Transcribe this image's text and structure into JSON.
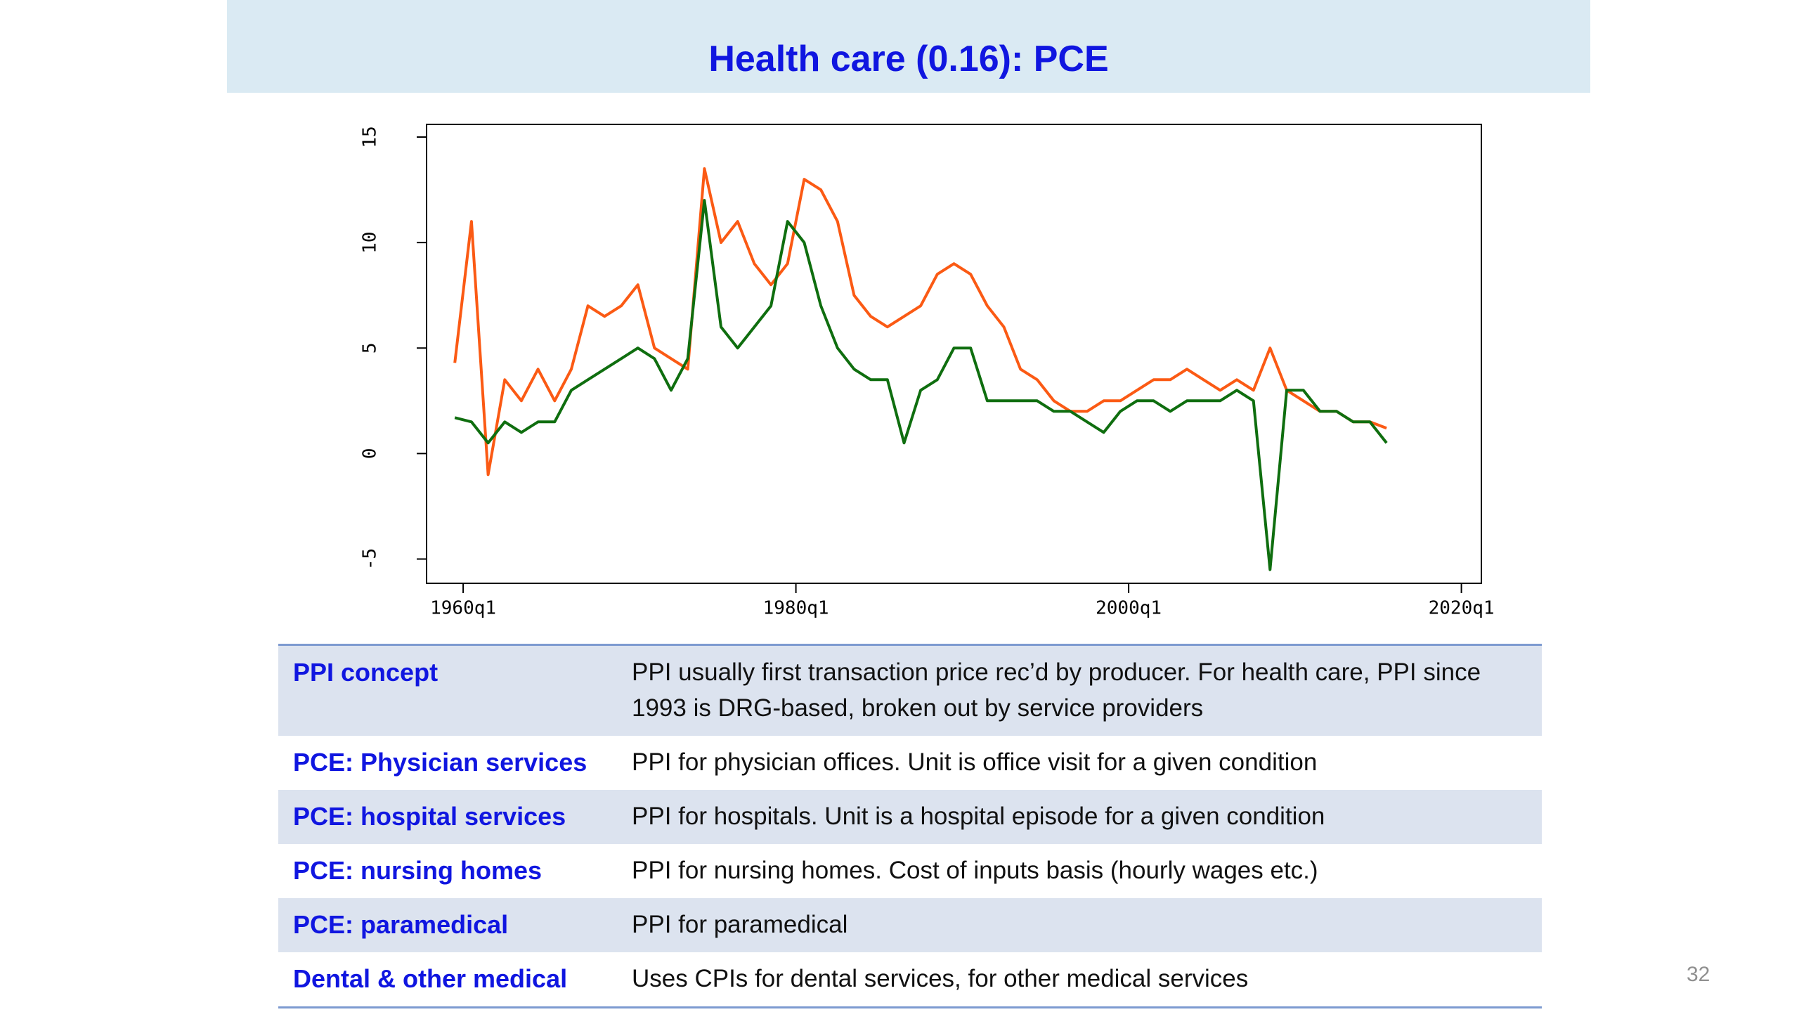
{
  "header": {
    "title": "Health care (0.16): PCE"
  },
  "chart_data": {
    "type": "line",
    "x": [
      1959.5,
      1960.5,
      1961.5,
      1962.5,
      1963.5,
      1964.5,
      1965.5,
      1966.5,
      1967.5,
      1968.5,
      1969.5,
      1970.5,
      1971.5,
      1972.5,
      1973.5,
      1974.5,
      1975.5,
      1976.5,
      1977.5,
      1978.5,
      1979.5,
      1980.5,
      1981.5,
      1982.5,
      1983.5,
      1984.5,
      1985.5,
      1986.5,
      1987.5,
      1988.5,
      1989.5,
      1990.5,
      1991.5,
      1992.5,
      1993.5,
      1994.5,
      1995.5,
      1996.5,
      1997.5,
      1998.5,
      1999.5,
      2000.5,
      2001.5,
      2002.5,
      2003.5,
      2004.5,
      2005.5,
      2006.5,
      2007.5,
      2008.5,
      2009.5,
      2010.5,
      2011.5,
      2012.5,
      2013.5,
      2014.5,
      2015.5
    ],
    "series": [
      {
        "color": "#fb5a14",
        "values": [
          4.3,
          11,
          -1,
          3.5,
          2.5,
          4,
          2.5,
          4,
          7,
          6.5,
          7,
          8,
          5,
          4.5,
          4,
          13.5,
          10,
          11,
          9,
          8,
          9,
          13,
          12.5,
          11,
          7.5,
          6.5,
          6,
          6.5,
          7,
          8.5,
          9,
          8.5,
          7,
          6,
          4,
          3.5,
          2.5,
          2,
          2,
          2.5,
          2.5,
          3,
          3.5,
          3.5,
          4,
          3.5,
          3,
          3.5,
          3,
          5,
          3,
          2.5,
          2,
          2,
          1.5,
          1.5,
          1.2
        ]
      },
      {
        "color": "#0f6e0f",
        "values": [
          1.7,
          1.5,
          0.5,
          1.5,
          1,
          1.5,
          1.5,
          3,
          3.5,
          4,
          4.5,
          5,
          4.5,
          3,
          4.5,
          12,
          6,
          5,
          6,
          7,
          11,
          10,
          7,
          5,
          4,
          3.5,
          3.5,
          0.5,
          3,
          3.5,
          5,
          5,
          2.5,
          2.5,
          2.5,
          2.5,
          2,
          2,
          1.5,
          1,
          2,
          2.5,
          2.5,
          2,
          2.5,
          2.5,
          2.5,
          3,
          2.5,
          -5.5,
          3,
          3,
          2,
          2,
          1.5,
          1.5,
          0.5
        ]
      }
    ],
    "xlim": [
      1957.8,
      2021.2
    ],
    "ylim": [
      -6.15,
      15.6
    ],
    "xticks": [
      {
        "value": 1960,
        "label": "1960q1"
      },
      {
        "value": 1980,
        "label": "1980q1"
      },
      {
        "value": 2000,
        "label": "2000q1"
      },
      {
        "value": 2020,
        "label": "2020q1"
      }
    ],
    "yticks": [
      -5,
      0,
      5,
      10,
      15
    ]
  },
  "table": {
    "rows": [
      [
        "PPI concept",
        "PPI usually first transaction price rec’d by producer. For health care, PPI since 1993 is DRG-based, broken out by service providers"
      ],
      [
        "PCE: Physician services",
        "PPI for physician offices. Unit is office visit for a given condition"
      ],
      [
        "PCE: hospital services",
        "PPI for hospitals. Unit is a hospital episode for a given condition"
      ],
      [
        "PCE: nursing homes",
        "PPI for nursing homes. Cost of inputs basis (hourly wages etc.)"
      ],
      [
        "PCE: paramedical",
        "PPI for paramedical"
      ],
      [
        "Dental &  other medical",
        "Uses CPIs for dental services, for other medical services"
      ]
    ]
  },
  "page_number": "32"
}
